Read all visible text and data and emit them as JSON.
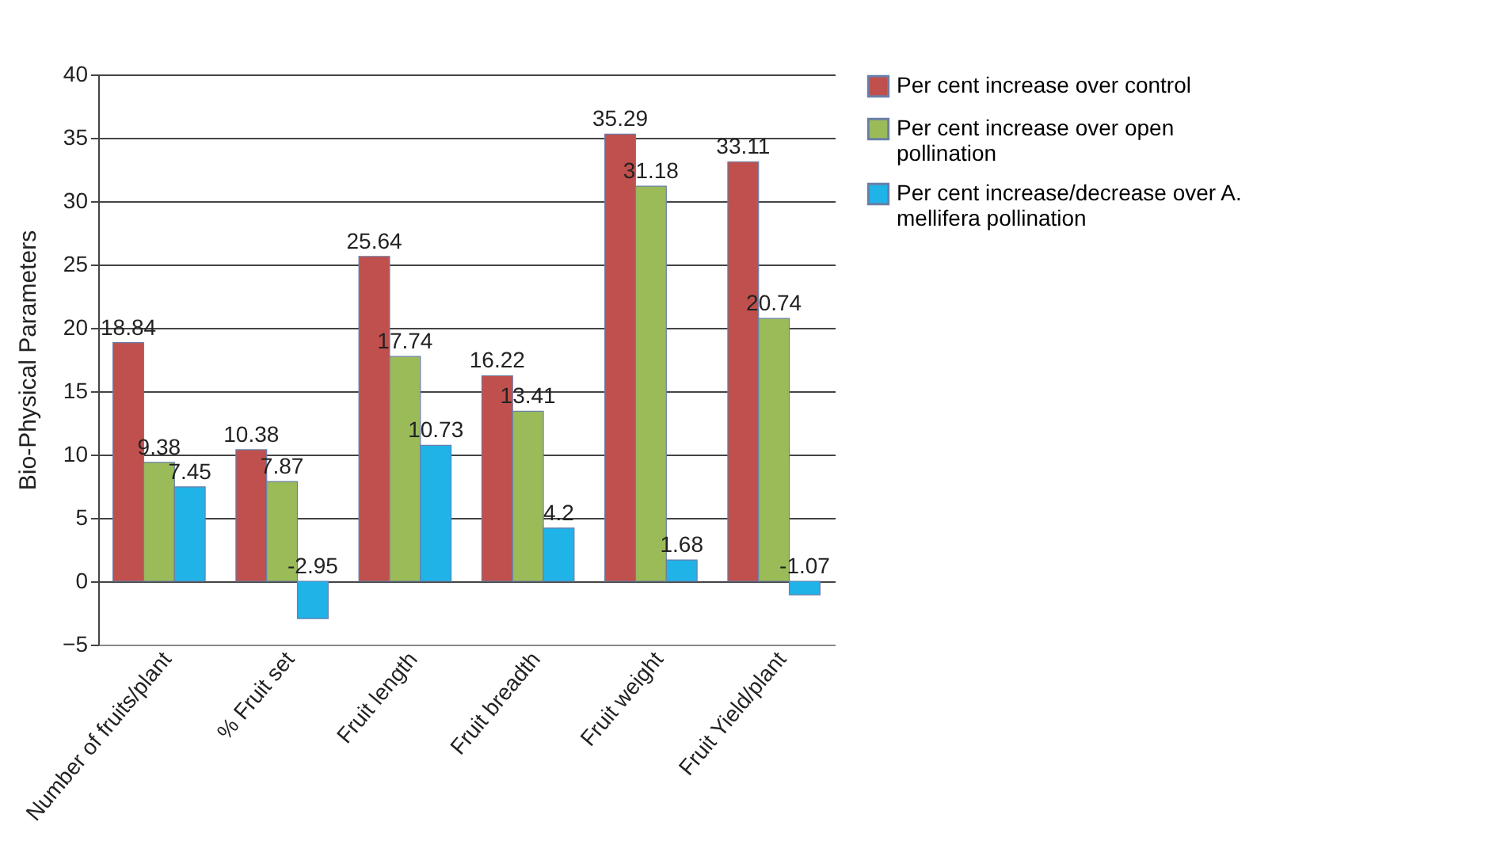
{
  "chart_data": {
    "type": "bar",
    "ylabel": "Bio-Physical Parameters",
    "categories": [
      "Number of fruits/plant",
      "% Fruit set",
      "Fruit length",
      "Fruit breadth",
      "Fruit weight",
      "Fruit Yield/plant"
    ],
    "series": [
      {
        "name": "Per cent increase over control",
        "color": "#c0504d",
        "values": [
          18.84,
          10.38,
          25.64,
          16.22,
          35.29,
          33.11
        ]
      },
      {
        "name": "Per cent increase over open pollination",
        "color": "#9bbb59",
        "values": [
          9.38,
          7.87,
          17.74,
          13.41,
          31.18,
          20.74
        ]
      },
      {
        "name": "Per cent increase/decrease over A. mellifera pollination",
        "color": "#1fb3e8",
        "values": [
          7.45,
          -2.95,
          10.73,
          4.2,
          1.68,
          -1.07
        ]
      }
    ],
    "ylim": [
      -5,
      40
    ],
    "yticks": [
      -5,
      0,
      5,
      10,
      15,
      20,
      25,
      30,
      35,
      40
    ],
    "grid": "y",
    "legend": "right",
    "data_labels": true
  }
}
